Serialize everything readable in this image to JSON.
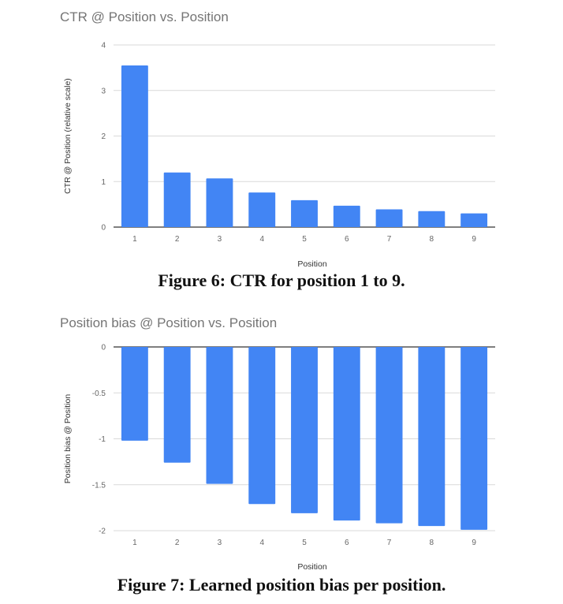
{
  "chart_data": [
    {
      "type": "bar",
      "title": "CTR @ Position vs. Position",
      "xlabel": "Position",
      "ylabel": "CTR @ Position (relative scale)",
      "categories": [
        "1",
        "2",
        "3",
        "4",
        "5",
        "6",
        "7",
        "8",
        "9"
      ],
      "values": [
        3.55,
        1.2,
        1.07,
        0.76,
        0.59,
        0.47,
        0.39,
        0.35,
        0.3
      ],
      "ylim": [
        0,
        4
      ],
      "yticks": [
        "0",
        "1",
        "2",
        "3",
        "4"
      ],
      "ytick_values": [
        0,
        1,
        2,
        3,
        4
      ],
      "grid": true,
      "bar_color": "#4285f4",
      "caption": "Figure 6: CTR for position 1 to 9."
    },
    {
      "type": "bar",
      "title": "Position bias @ Position vs. Position",
      "xlabel": "Position",
      "ylabel": "Position bias @ Position",
      "categories": [
        "1",
        "2",
        "3",
        "4",
        "5",
        "6",
        "7",
        "8",
        "9"
      ],
      "values": [
        -1.02,
        -1.26,
        -1.49,
        -1.71,
        -1.81,
        -1.89,
        -1.92,
        -1.95,
        -1.99
      ],
      "ylim": [
        -2,
        0
      ],
      "yticks": [
        "0",
        "-0.5",
        "-1",
        "-1.5",
        "-2"
      ],
      "ytick_values": [
        0,
        -0.5,
        -1,
        -1.5,
        -2
      ],
      "grid": true,
      "bar_color": "#4285f4",
      "caption": "Figure 7: Learned position bias per position."
    }
  ]
}
